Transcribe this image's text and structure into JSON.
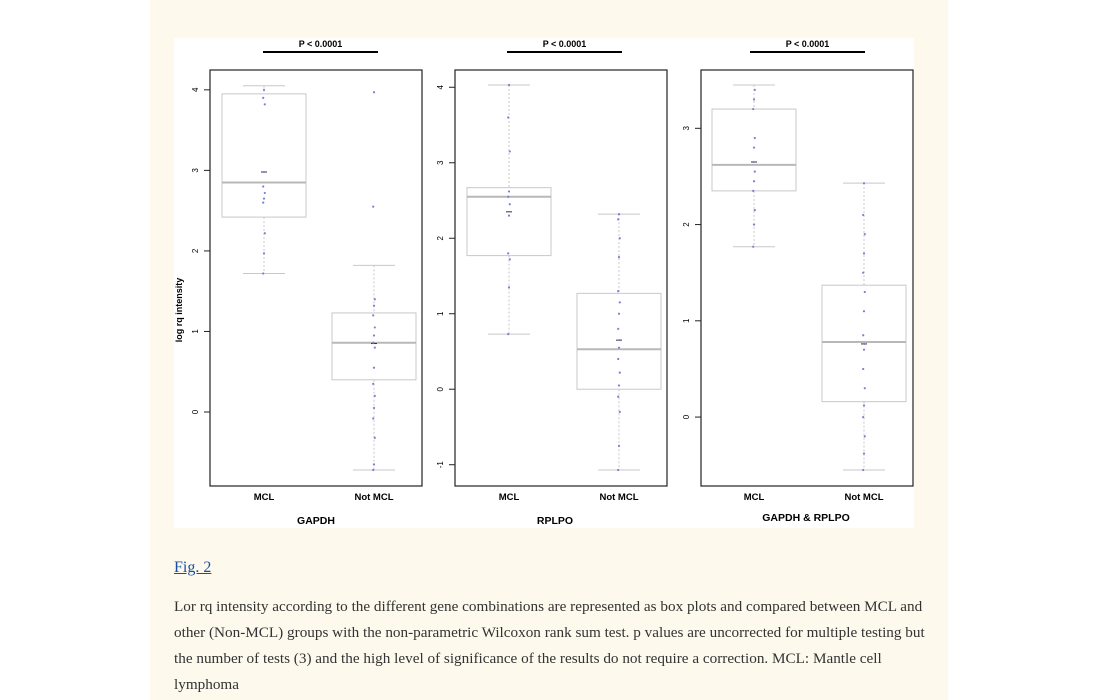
{
  "figure": {
    "link_text": "Fig. 2",
    "caption": "Lor rq intensity according to the different gene combinations are represented as box plots and compared between MCL and other (Non-MCL) groups with the non-parametric Wilcoxon rank sum test. p values are uncorrected for multiple testing but the number of tests (3) and the high level of significance of the results do not require a correction. MCL: Mantle cell lymphoma"
  },
  "colors": {
    "page_background": "#fdf9ed",
    "box_outline": "#c8c8c8",
    "points": "#7b7fd6",
    "axes": "#222222"
  },
  "chart_data": [
    {
      "type": "box",
      "title": "GAPDH",
      "ylabel": "log rq intensity",
      "significance": "P < 0.0001",
      "categories": [
        "MCL",
        "Not MCL"
      ],
      "ylim": [
        -0.72,
        4.06
      ],
      "yticks": [
        0,
        1,
        2,
        3,
        4
      ],
      "boxes": [
        {
          "name": "MCL",
          "whisker_low": 1.72,
          "q1": 2.42,
          "median": 2.85,
          "q3": 3.95,
          "whisker_high": 4.05,
          "mean": 2.98,
          "points": [
            1.72,
            1.97,
            2.22,
            2.6,
            2.65,
            2.72,
            2.8,
            2.98,
            3.82,
            3.9,
            4.0
          ]
        },
        {
          "name": "Not MCL",
          "whisker_low": -0.72,
          "q1": 0.4,
          "median": 0.86,
          "q3": 1.23,
          "whisker_high": 1.82,
          "mean": 0.85,
          "points": [
            -0.72,
            -0.65,
            -0.32,
            -0.08,
            0.05,
            0.2,
            0.35,
            0.55,
            0.8,
            0.86,
            0.95,
            1.05,
            1.2,
            1.32,
            1.4,
            2.55,
            3.97
          ]
        }
      ]
    },
    {
      "type": "box",
      "title": "RPLPO",
      "ylabel": "",
      "significance": "P < 0.0001",
      "categories": [
        "MCL",
        "Not MCL"
      ],
      "ylim": [
        -1.07,
        4.03
      ],
      "yticks": [
        -1,
        0,
        1,
        2,
        3,
        4
      ],
      "boxes": [
        {
          "name": "MCL",
          "whisker_low": 0.73,
          "q1": 1.77,
          "median": 2.55,
          "q3": 2.67,
          "whisker_high": 4.03,
          "mean": 2.35,
          "points": [
            0.73,
            1.35,
            1.72,
            1.8,
            2.3,
            2.45,
            2.55,
            2.62,
            3.15,
            3.6,
            4.03
          ]
        },
        {
          "name": "Not MCL",
          "whisker_low": -1.07,
          "q1": 0.0,
          "median": 0.53,
          "q3": 1.27,
          "whisker_high": 2.32,
          "mean": 0.65,
          "points": [
            -1.07,
            -0.75,
            -0.3,
            -0.1,
            0.05,
            0.22,
            0.4,
            0.55,
            0.65,
            0.8,
            1.0,
            1.15,
            1.3,
            1.75,
            2.0,
            2.25,
            2.32
          ]
        }
      ]
    },
    {
      "type": "box",
      "title": "GAPDH & RPLPO",
      "ylabel": "",
      "significance": "P < 0.0001",
      "categories": [
        "MCL",
        "Not MCL"
      ],
      "ylim": [
        -0.55,
        3.45
      ],
      "yticks": [
        0,
        1,
        2,
        3
      ],
      "boxes": [
        {
          "name": "MCL",
          "whisker_low": 1.77,
          "q1": 2.35,
          "median": 2.62,
          "q3": 3.2,
          "whisker_high": 3.45,
          "mean": 2.65,
          "points": [
            1.77,
            2.0,
            2.15,
            2.35,
            2.45,
            2.55,
            2.65,
            2.8,
            2.9,
            3.2,
            3.3,
            3.4
          ]
        },
        {
          "name": "Not MCL",
          "whisker_low": -0.55,
          "q1": 0.16,
          "median": 0.78,
          "q3": 1.37,
          "whisker_high": 2.43,
          "mean": 0.76,
          "points": [
            -0.55,
            -0.38,
            -0.2,
            0.0,
            0.12,
            0.3,
            0.5,
            0.7,
            0.76,
            0.85,
            1.1,
            1.3,
            1.5,
            1.7,
            1.9,
            2.1,
            2.43
          ]
        }
      ]
    }
  ]
}
